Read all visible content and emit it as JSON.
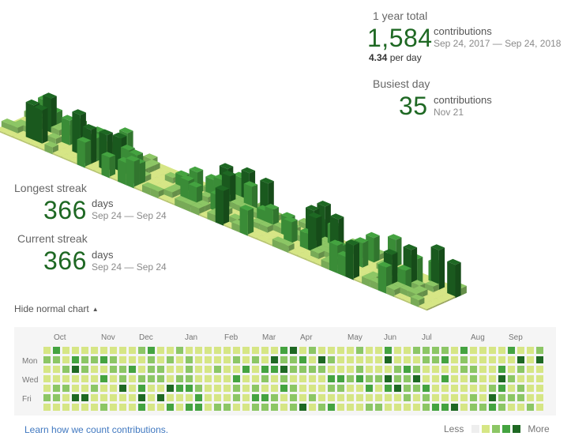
{
  "summary": {
    "total_label": "1 year total",
    "total_value": "1,584",
    "total_unit": "contributions",
    "total_range": "Sep 24, 2017 — Sep 24, 2018",
    "per_day_value": "4.34",
    "per_day_label": "per day",
    "busiest_label": "Busiest day",
    "busiest_value": "35",
    "busiest_unit": "contributions",
    "busiest_date": "Nov 21"
  },
  "streaks": {
    "longest_label": "Longest streak",
    "longest_value": "366",
    "longest_unit": "days",
    "longest_range": "Sep 24 — Sep 24",
    "current_label": "Current streak",
    "current_value": "366",
    "current_unit": "days",
    "current_range": "Sep 24 — Sep 24"
  },
  "toggle": {
    "label": "Hide normal chart",
    "caret": "▲"
  },
  "calendar": {
    "months": [
      "Oct",
      "Nov",
      "Dec",
      "Jan",
      "Feb",
      "Mar",
      "Apr",
      "May",
      "Jun",
      "Jul",
      "Aug",
      "Sep"
    ],
    "day_labels": [
      "Mon",
      "Wed",
      "Fri"
    ],
    "weeks": 53,
    "days_per_week": 7
  },
  "footer": {
    "learn_link": "Learn how we count contributions.",
    "less": "Less",
    "more": "More"
  },
  "colors": {
    "level0": "#eeeeee",
    "level1": "#d6e685",
    "level2": "#8cc665",
    "level3": "#44a340",
    "level4": "#1e6823",
    "accent": "#1e6823",
    "link": "#4078c0"
  }
}
